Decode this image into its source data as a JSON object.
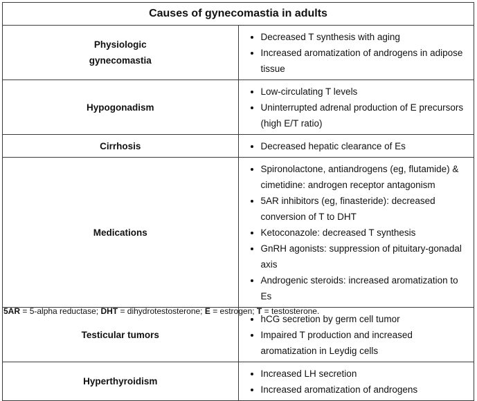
{
  "table": {
    "title": "Causes of gynecomastia in adults",
    "rows": [
      {
        "cause_lines": [
          "Physiologic",
          "gynecomastia"
        ],
        "items": [
          "Decreased T synthesis with aging",
          "Increased aromatization of androgens in adipose tissue"
        ]
      },
      {
        "cause_lines": [
          "Hypogonadism"
        ],
        "items": [
          "Low-circulating T levels",
          "Uninterrupted adrenal production of E precursors (high E/T ratio)"
        ]
      },
      {
        "cause_lines": [
          "Cirrhosis"
        ],
        "items": [
          "Decreased hepatic clearance of Es"
        ]
      },
      {
        "cause_lines": [
          "Medications"
        ],
        "items": [
          "Spironolactone, antiandrogens (eg, flutamide) & cimetidine: androgen receptor antagonism",
          "5AR inhibitors (eg, finasteride): decreased conversion of T to DHT",
          "Ketoconazole: decreased T synthesis",
          "GnRH agonists: suppression of pituitary-gonadal axis",
          "Androgenic steroids: increased aromatization to Es"
        ]
      },
      {
        "cause_lines": [
          "Testicular tumors"
        ],
        "items": [
          "hCG secretion by germ cell tumor",
          "Impaired T production and increased aromatization in Leydig cells"
        ]
      },
      {
        "cause_lines": [
          "Hyperthyroidism"
        ],
        "items": [
          "Increased LH secretion",
          "Increased aromatization of androgens"
        ]
      }
    ]
  },
  "footnote": {
    "abbr1": "5AR",
    "def1": " = 5-alpha reductase; ",
    "abbr2": "DHT",
    "def2": " = dihydrotestosterone; ",
    "abbr3": "E",
    "def3": " = estrogen; ",
    "abbr4": "T",
    "def4": " = testosterone."
  }
}
